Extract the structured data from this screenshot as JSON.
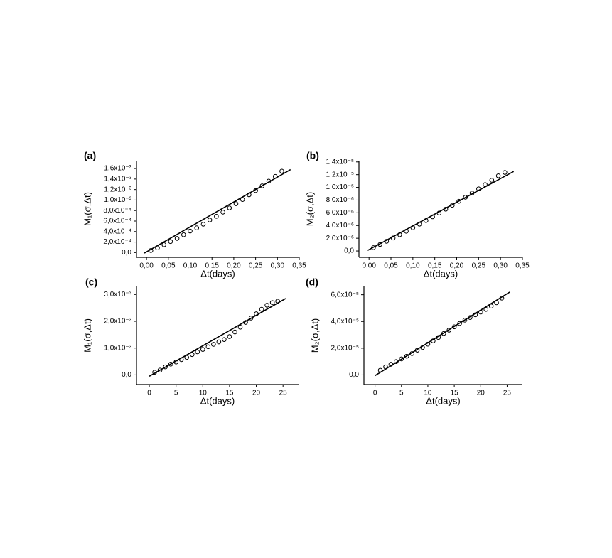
{
  "chart_data": [
    {
      "type": "scatter",
      "panel_label": "(a)",
      "y_label": "M₁(σ,Δt)",
      "x_label": "Δt(days)",
      "xlim": [
        -0.023,
        0.35
      ],
      "ylim": [
        -9e-05,
        0.00175
      ],
      "xticks": [
        {
          "value": 0,
          "label": "0,00"
        },
        {
          "value": 0.05,
          "label": "0,05"
        },
        {
          "value": 0.1,
          "label": "0,10"
        },
        {
          "value": 0.15,
          "label": "0,15"
        },
        {
          "value": 0.2,
          "label": "0,20"
        },
        {
          "value": 0.25,
          "label": "0,25"
        },
        {
          "value": 0.3,
          "label": "0,30"
        },
        {
          "value": 0.35,
          "label": "0,35"
        }
      ],
      "yticks": [
        {
          "value": 0,
          "label": "0,0"
        },
        {
          "value": 0.0002,
          "label": "2,0x10⁻⁴"
        },
        {
          "value": 0.0004,
          "label": "4,0x10⁻⁴"
        },
        {
          "value": 0.0006,
          "label": "6,0x10⁻⁴"
        },
        {
          "value": 0.0008,
          "label": "8,0x10⁻⁴"
        },
        {
          "value": 0.001,
          "label": "1,0x10⁻³"
        },
        {
          "value": 0.0012,
          "label": "1,2x10⁻³"
        },
        {
          "value": 0.0014,
          "label": "1,4x10⁻³"
        },
        {
          "value": 0.0016,
          "label": "1,6x10⁻³"
        }
      ],
      "series": [
        {
          "kind": "markers",
          "color": "#000000",
          "x": [
            0.01,
            0.025,
            0.04,
            0.055,
            0.07,
            0.085,
            0.1,
            0.115,
            0.13,
            0.145,
            0.16,
            0.175,
            0.19,
            0.205,
            0.22,
            0.235,
            0.25,
            0.265,
            0.28,
            0.295,
            0.31
          ],
          "values": [
            4e-05,
            9e-05,
            0.00015,
            0.00021,
            0.00027,
            0.00034,
            0.00041,
            0.00047,
            0.00054,
            0.00062,
            0.00069,
            0.00077,
            0.00085,
            0.00093,
            0.00101,
            0.0011,
            0.00118,
            0.00127,
            0.00136,
            0.00145,
            0.00155
          ]
        },
        {
          "kind": "line",
          "color": "#000000",
          "x": [
            -0.005,
            0.33
          ],
          "values": [
            -1e-05,
            0.00158
          ]
        }
      ]
    },
    {
      "type": "scatter",
      "panel_label": "(b)",
      "y_label": "M₂(σ,Δt)",
      "x_label": "Δt(days)",
      "xlim": [
        -0.023,
        0.35
      ],
      "ylim": [
        -1e-06,
        1.42e-05
      ],
      "xticks": [
        {
          "value": 0,
          "label": "0,00"
        },
        {
          "value": 0.05,
          "label": "0,05"
        },
        {
          "value": 0.1,
          "label": "0,10"
        },
        {
          "value": 0.15,
          "label": "0,15"
        },
        {
          "value": 0.2,
          "label": "0,20"
        },
        {
          "value": 0.25,
          "label": "0,25"
        },
        {
          "value": 0.3,
          "label": "0,30"
        },
        {
          "value": 0.35,
          "label": "0,35"
        }
      ],
      "yticks": [
        {
          "value": 0,
          "label": "0,0"
        },
        {
          "value": 2e-06,
          "label": "2,0x10⁻⁶"
        },
        {
          "value": 4e-06,
          "label": "4,0x10⁻⁶"
        },
        {
          "value": 6e-06,
          "label": "6,0x10⁻⁶"
        },
        {
          "value": 8e-06,
          "label": "8,0x10⁻⁶"
        },
        {
          "value": 1e-05,
          "label": "1,0x10⁻⁵"
        },
        {
          "value": 1.2e-05,
          "label": "1,2x10⁻⁵"
        },
        {
          "value": 1.4e-05,
          "label": "1,4x10⁻⁵"
        }
      ],
      "series": [
        {
          "kind": "markers",
          "color": "#000000",
          "x": [
            0.01,
            0.025,
            0.04,
            0.055,
            0.07,
            0.085,
            0.1,
            0.115,
            0.13,
            0.145,
            0.16,
            0.175,
            0.19,
            0.205,
            0.22,
            0.235,
            0.25,
            0.265,
            0.28,
            0.295,
            0.31
          ],
          "values": [
            5.2e-07,
            1.02e-06,
            1.52e-06,
            2.04e-06,
            2.56e-06,
            3.1e-06,
            3.65e-06,
            4.21e-06,
            4.78e-06,
            5.37e-06,
            5.96e-06,
            6.57e-06,
            7.18e-06,
            7.81e-06,
            8.45e-06,
            9.1e-06,
            9.76e-06,
            1.044e-05,
            1.112e-05,
            1.182e-05,
            1.235e-05
          ]
        },
        {
          "kind": "line",
          "color": "#000000",
          "x": [
            -0.003,
            0.33
          ],
          "values": [
            1e-07,
            1.25e-05
          ]
        }
      ]
    },
    {
      "type": "scatter",
      "panel_label": "(c)",
      "y_label": "M₁(σ,Δt)",
      "x_label": "Δt(days)",
      "xlim": [
        -2.4,
        27.9
      ],
      "ylim": [
        -0.00036,
        0.0033
      ],
      "xticks": [
        0,
        5,
        10,
        15,
        20,
        25
      ],
      "yticks": [
        {
          "value": 0,
          "label": "0,0"
        },
        {
          "value": 0.001,
          "label": "1,0x10⁻³"
        },
        {
          "value": 0.002,
          "label": "2,0x10⁻³"
        },
        {
          "value": 0.003,
          "label": "3,0x10⁻³"
        }
      ],
      "series": [
        {
          "kind": "markers",
          "color": "#000000",
          "x": [
            1,
            2,
            3,
            4,
            5,
            6,
            7,
            8,
            9,
            10,
            11,
            12,
            13,
            14,
            15,
            16,
            17,
            18,
            19,
            20,
            21,
            22,
            23,
            24
          ],
          "values": [
            0.0001,
            0.00018,
            0.0003,
            0.0004,
            0.00048,
            0.00057,
            0.00065,
            0.00076,
            0.00086,
            0.00095,
            0.00105,
            0.00114,
            0.00123,
            0.00132,
            0.00143,
            0.0016,
            0.00178,
            0.00196,
            0.00212,
            0.00228,
            0.00245,
            0.0026,
            0.0027,
            0.00275
          ]
        },
        {
          "kind": "line",
          "color": "#000000",
          "x": [
            0,
            25.5
          ],
          "values": [
            -5e-05,
            0.00285
          ]
        }
      ]
    },
    {
      "type": "scatter",
      "panel_label": "(d)",
      "y_label": "M₂(σ,Δt)",
      "x_label": "Δt(days)",
      "xlim": [
        -2.1,
        27.9
      ],
      "ylim": [
        -7.2e-06,
        6.62e-05
      ],
      "xticks": [
        0,
        5,
        10,
        15,
        20,
        25
      ],
      "yticks": [
        {
          "value": 0,
          "label": "0,0"
        },
        {
          "value": 2e-05,
          "label": "2,0x10⁻⁵"
        },
        {
          "value": 4e-05,
          "label": "4,0x10⁻⁵"
        },
        {
          "value": 6e-05,
          "label": "6,0x10⁻⁵"
        }
      ],
      "series": [
        {
          "kind": "markers",
          "color": "#000000",
          "x": [
            1,
            2,
            3,
            4,
            5,
            6,
            7,
            8,
            9,
            10,
            11,
            12,
            13,
            14,
            15,
            16,
            17,
            18,
            19,
            20,
            21,
            22,
            23,
            24
          ],
          "values": [
            3.5e-06,
            6e-06,
            8e-06,
            1e-05,
            1.2e-05,
            1.4e-05,
            1.6e-05,
            1.85e-05,
            2.05e-05,
            2.3e-05,
            2.55e-05,
            2.8e-05,
            3.1e-05,
            3.35e-05,
            3.6e-05,
            3.85e-05,
            4.1e-05,
            4.3e-05,
            4.5e-05,
            4.7e-05,
            4.9e-05,
            5.15e-05,
            5.4e-05,
            5.75e-05
          ]
        },
        {
          "kind": "line",
          "color": "#000000",
          "x": [
            0,
            25.5
          ],
          "values": [
            -5e-07,
            6.2e-05
          ]
        }
      ]
    }
  ]
}
